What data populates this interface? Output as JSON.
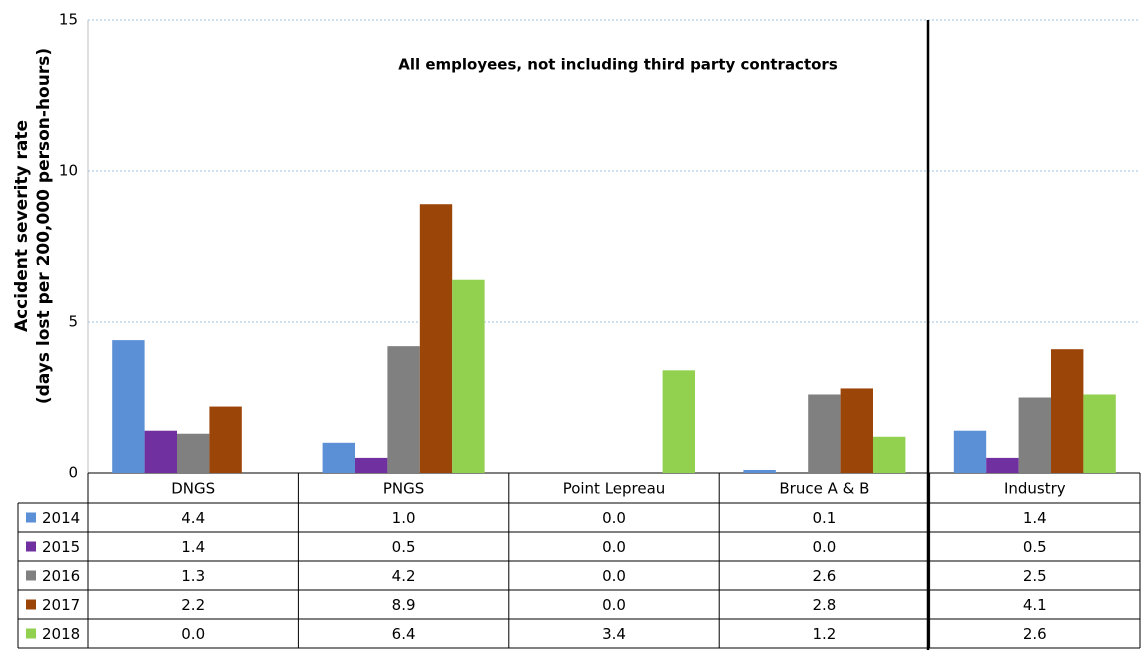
{
  "chart_data": {
    "type": "bar",
    "annotation": "All employees, not including third party contractors",
    "y_label": [
      "Accident severity rate",
      "(days lost per 200,000 person-hours)"
    ],
    "categories": [
      "DNGS",
      "PNGS",
      "Point Lepreau",
      "Bruce A & B",
      "Industry"
    ],
    "series": [
      {
        "name": "2014",
        "color": "#5b8fd6",
        "values": [
          4.4,
          1.0,
          0.0,
          0.1,
          1.4
        ],
        "value_labels": [
          "4.4",
          "1.0",
          "0.0",
          "0.1",
          "1.4"
        ]
      },
      {
        "name": "2015",
        "color": "#7030a0",
        "values": [
          1.4,
          0.5,
          0.0,
          0.0,
          0.5
        ],
        "value_labels": [
          "1.4",
          "0.5",
          "0.0",
          "0.0",
          "0.5"
        ]
      },
      {
        "name": "2016",
        "color": "#808080",
        "values": [
          1.3,
          4.2,
          0.0,
          2.6,
          2.5
        ],
        "value_labels": [
          "1.3",
          "4.2",
          "0.0",
          "2.6",
          "2.5"
        ]
      },
      {
        "name": "2017",
        "color": "#9c4509",
        "values": [
          2.2,
          8.9,
          0.0,
          2.8,
          4.1
        ],
        "value_labels": [
          "2.2",
          "8.9",
          "0.0",
          "2.8",
          "4.1"
        ]
      },
      {
        "name": "2018",
        "color": "#92d050",
        "values": [
          0.0,
          6.4,
          3.4,
          1.2,
          2.6
        ],
        "value_labels": [
          "0.0",
          "6.4",
          "3.4",
          "1.2",
          "2.6"
        ]
      }
    ],
    "ylim": [
      0,
      15
    ],
    "yticks": [
      0,
      5,
      10,
      15
    ],
    "grid": true
  }
}
